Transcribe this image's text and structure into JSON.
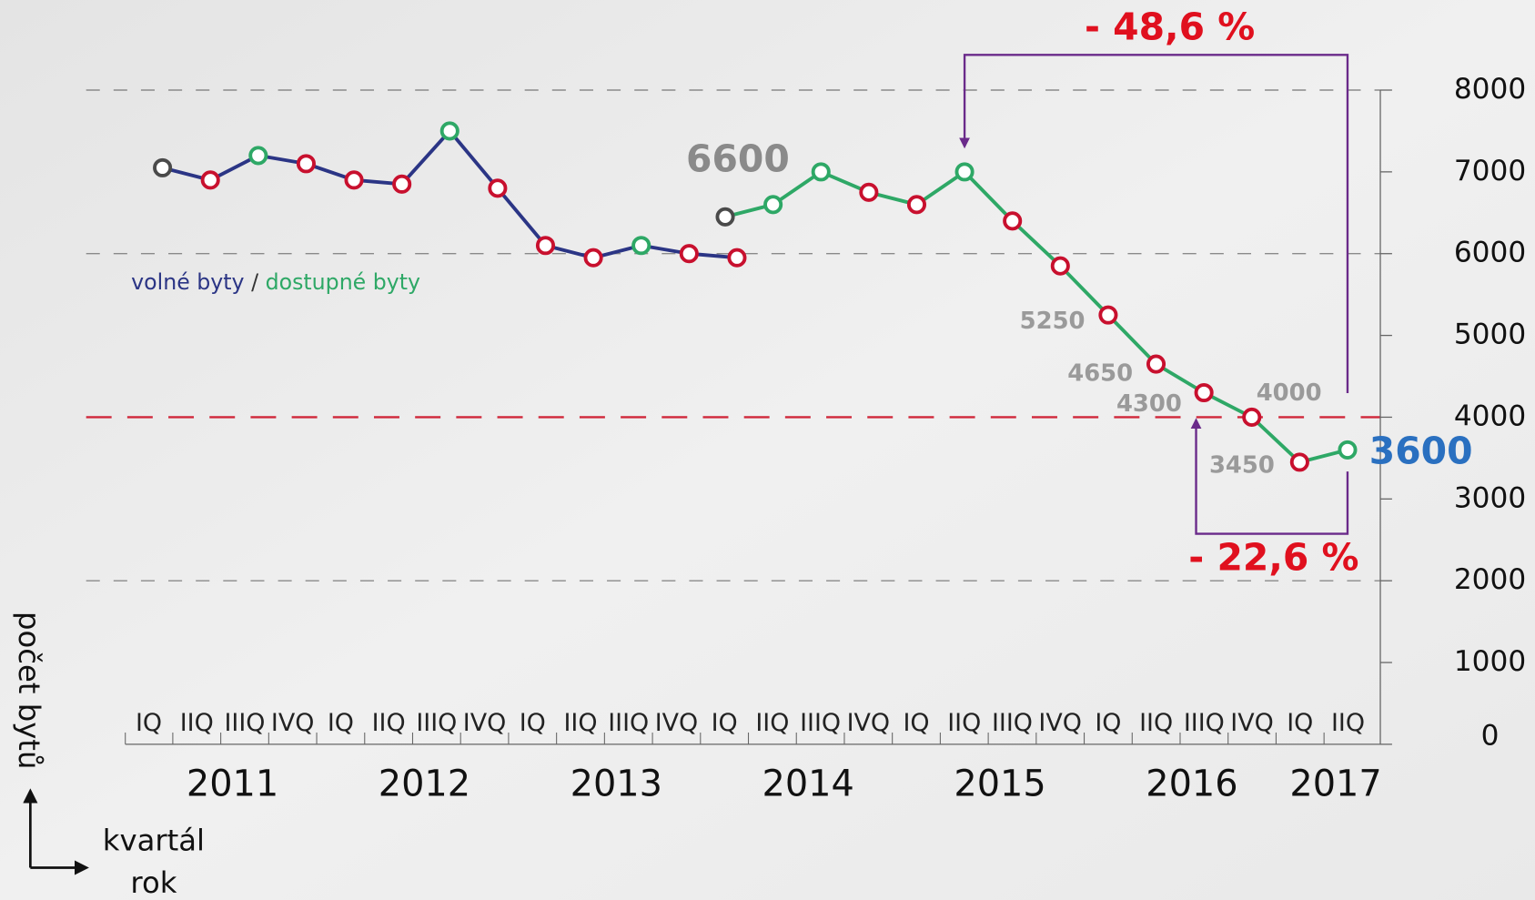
{
  "chart_data": {
    "type": "line",
    "categories": [
      "IQ",
      "IIQ",
      "IIIQ",
      "IVQ",
      "IQ",
      "IIQ",
      "IIIQ",
      "IVQ",
      "IQ",
      "IIQ",
      "IIIQ",
      "IVQ",
      "IQ",
      "IIQ",
      "IIIQ",
      "IVQ",
      "IQ",
      "IIQ",
      "IIIQ",
      "IVQ",
      "IQ",
      "IIQ",
      "IIIQ",
      "IVQ",
      "IQ",
      "IIQ"
    ],
    "years": [
      "2011",
      "2012",
      "2013",
      "2014",
      "2015",
      "2016",
      "2017"
    ],
    "series": [
      {
        "name": "volné byty",
        "color": "#2b3585",
        "values": [
          7050,
          6900,
          7200,
          7100,
          6900,
          6850,
          7500,
          6800,
          6100,
          5950,
          6100,
          6000,
          5950,
          null,
          null,
          null,
          null,
          null,
          null,
          null,
          null,
          null,
          null,
          null,
          null,
          null
        ],
        "marker_colors": [
          "#4a4a4a",
          "#c8102e",
          "#2ea866",
          "#c8102e",
          "#c8102e",
          "#c8102e",
          "#2ea866",
          "#c8102e",
          "#c8102e",
          "#c8102e",
          "#2ea866",
          "#c8102e",
          "#c8102e",
          null,
          null,
          null,
          null,
          null,
          null,
          null,
          null,
          null,
          null,
          null,
          null,
          null
        ]
      },
      {
        "name": "dostupné byty",
        "color": "#2ea866",
        "values": [
          null,
          null,
          null,
          null,
          null,
          null,
          null,
          null,
          null,
          null,
          null,
          null,
          6450,
          6600,
          7000,
          6750,
          6600,
          7000,
          6400,
          5850,
          5250,
          4650,
          4300,
          4000,
          3450,
          3600
        ],
        "marker_colors": [
          null,
          null,
          null,
          null,
          null,
          null,
          null,
          null,
          null,
          null,
          null,
          null,
          "#4a4a4a",
          "#2ea866",
          "#2ea866",
          "#c8102e",
          "#c8102e",
          "#2ea866",
          "#c8102e",
          "#c8102e",
          "#c8102e",
          "#c8102e",
          "#c8102e",
          "#c8102e",
          "#c8102e",
          "#2ea866"
        ],
        "value_labels": [
          null,
          null,
          null,
          null,
          null,
          null,
          null,
          null,
          null,
          null,
          null,
          null,
          null,
          "6600",
          null,
          null,
          null,
          null,
          null,
          null,
          "5250",
          "4650",
          "4300",
          "4000",
          "3450",
          "3600"
        ]
      }
    ],
    "legend_separator": "/",
    "ylim": [
      0,
      8000
    ],
    "yticks": [
      0,
      1000,
      2000,
      3000,
      4000,
      5000,
      6000,
      7000,
      8000
    ],
    "grid": {
      "values": [
        2000,
        6000,
        8000
      ],
      "color": "#8a8a8a"
    },
    "reference_line": {
      "value": 4000,
      "color": "#d0273a"
    },
    "y_label": "počet bytů",
    "x_label_quarter": "kvartál",
    "x_label_year": "rok",
    "annotations": [
      "- 48,6 %",
      "- 22,6 %"
    ]
  }
}
